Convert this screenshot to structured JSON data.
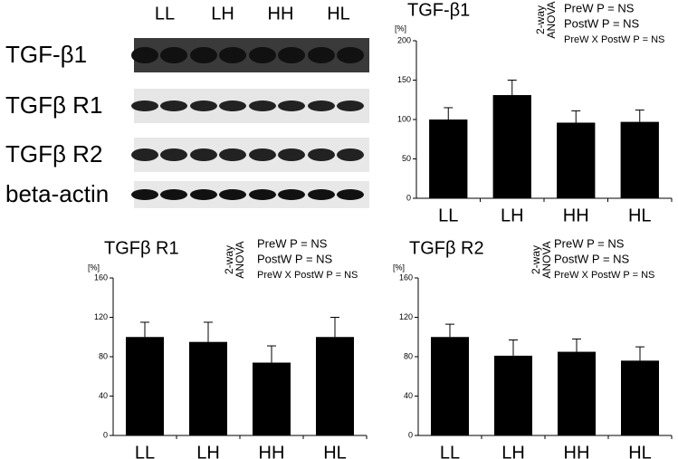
{
  "blot": {
    "lanes": [
      "LL",
      "LH",
      "HH",
      "HL"
    ],
    "rows": [
      "TGF-β1",
      "TGFβ R1",
      "TGFβ R2",
      "beta-actin"
    ]
  },
  "chart_data": [
    {
      "type": "bar",
      "title": "TGF-β1",
      "y_unit": "[%]",
      "annotation": [
        "2-way",
        "ANOVA"
      ],
      "stats": [
        "PreW P = NS",
        "PostW P = NS",
        "PreW X PostW P = NS"
      ],
      "categories": [
        "LL",
        "LH",
        "HH",
        "HL"
      ],
      "values": [
        100,
        131,
        96,
        97
      ],
      "errors": [
        15,
        19,
        15,
        15
      ],
      "color": "#000000",
      "ylim": [
        0,
        200
      ],
      "yticks": [
        0,
        50,
        100,
        150,
        200
      ]
    },
    {
      "type": "bar",
      "title": "TGFβ R1",
      "y_unit": "[%]",
      "annotation": [
        "2-way",
        "ANOVA"
      ],
      "stats": [
        "PreW P = NS",
        "PostW P = NS",
        "PreW X PostW P = NS"
      ],
      "categories": [
        "LL",
        "LH",
        "HH",
        "HL"
      ],
      "values": [
        100,
        95,
        74,
        100
      ],
      "errors": [
        15,
        20,
        17,
        20
      ],
      "color": "#000000",
      "ylim": [
        0,
        160
      ],
      "yticks": [
        0,
        40,
        80,
        120,
        160
      ]
    },
    {
      "type": "bar",
      "title": "TGFβ R2",
      "y_unit": "[%]",
      "annotation": [
        "2-way",
        "ANOVA"
      ],
      "stats": [
        "PreW P = NS",
        "PostW P = NS",
        "PreW X PostW P = NS"
      ],
      "categories": [
        "LL",
        "LH",
        "HH",
        "HL"
      ],
      "values": [
        100,
        81,
        85,
        76
      ],
      "errors": [
        13,
        16,
        13,
        14
      ],
      "color": "#000000",
      "ylim": [
        0,
        160
      ],
      "yticks": [
        0,
        40,
        80,
        120,
        160
      ]
    }
  ]
}
